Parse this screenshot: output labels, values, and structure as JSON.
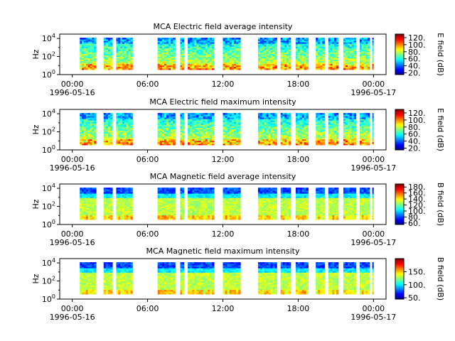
{
  "chart_data": [
    {
      "type": "heatmap",
      "title": "MCA  Electric field average intensity",
      "ylabel": "Hz",
      "y_scale": "log",
      "ylim": [
        1,
        30000
      ],
      "y_ticks": [
        "10^0",
        "10^2",
        "10^4"
      ],
      "x_ticks": [
        "00:00",
        "06:00",
        "12:00",
        "18:00",
        "00:00"
      ],
      "x_tick_dates": [
        "1996-05-16",
        "",
        "",
        "",
        "1996-05-17"
      ],
      "xlim_hours": [
        -1,
        25
      ],
      "colorbar_label": "E field (dB)",
      "colorbar_ticks": [
        20,
        40,
        60,
        80,
        100,
        120
      ],
      "colorbar_range": [
        15,
        130
      ],
      "colormap": "jet",
      "style": "electric",
      "data_coverage_hours": [
        [
          0.6,
          1.9
        ],
        [
          2.5,
          3.2
        ],
        [
          3.5,
          4.8
        ],
        [
          6.8,
          8.2
        ],
        [
          8.6,
          8.9
        ],
        [
          9.2,
          11.3
        ],
        [
          12.0,
          13.4
        ],
        [
          14.8,
          16.3
        ],
        [
          16.6,
          17.4
        ],
        [
          17.8,
          18.8
        ],
        [
          19.4,
          20.1
        ],
        [
          20.4,
          21.2
        ],
        [
          21.6,
          22.6
        ],
        [
          22.9,
          23.7
        ],
        [
          23.9,
          24.0
        ]
      ]
    },
    {
      "type": "heatmap",
      "title": "MCA  Electric field maximum intensity",
      "ylabel": "Hz",
      "y_scale": "log",
      "ylim": [
        1,
        30000
      ],
      "y_ticks": [
        "10^0",
        "10^2",
        "10^4"
      ],
      "x_ticks": [
        "00:00",
        "06:00",
        "12:00",
        "18:00",
        "00:00"
      ],
      "x_tick_dates": [
        "1996-05-16",
        "",
        "",
        "",
        "1996-05-17"
      ],
      "xlim_hours": [
        -1,
        25
      ],
      "colorbar_label": "E field (dB)",
      "colorbar_ticks": [
        20,
        40,
        60,
        80,
        100,
        120
      ],
      "colorbar_range": [
        15,
        130
      ],
      "colormap": "jet",
      "style": "electric",
      "data_coverage_hours": [
        [
          0.6,
          1.9
        ],
        [
          2.5,
          3.2
        ],
        [
          3.5,
          4.8
        ],
        [
          6.8,
          8.2
        ],
        [
          8.6,
          8.9
        ],
        [
          9.2,
          11.3
        ],
        [
          12.0,
          13.4
        ],
        [
          14.8,
          16.3
        ],
        [
          16.6,
          17.4
        ],
        [
          17.8,
          18.8
        ],
        [
          19.4,
          20.1
        ],
        [
          20.4,
          21.2
        ],
        [
          21.6,
          22.6
        ],
        [
          22.9,
          23.7
        ],
        [
          23.9,
          24.0
        ]
      ]
    },
    {
      "type": "heatmap",
      "title": "MCA  Magnetic field average intensity",
      "ylabel": "Hz",
      "y_scale": "log",
      "ylim": [
        1,
        30000
      ],
      "y_ticks": [
        "10^0",
        "10^2",
        "10^4"
      ],
      "x_ticks": [
        "00:00",
        "06:00",
        "12:00",
        "18:00",
        "00:00"
      ],
      "x_tick_dates": [
        "1996-05-16",
        "",
        "",
        "",
        "1996-05-17"
      ],
      "xlim_hours": [
        -1,
        25
      ],
      "colorbar_label": "B field (dB)",
      "colorbar_ticks": [
        60,
        80,
        100,
        120,
        140,
        160,
        180
      ],
      "colorbar_range": [
        55,
        190
      ],
      "colormap": "jet",
      "style": "magnetic",
      "data_coverage_hours": [
        [
          0.6,
          1.9
        ],
        [
          2.5,
          3.2
        ],
        [
          3.5,
          4.8
        ],
        [
          6.8,
          8.2
        ],
        [
          8.6,
          8.9
        ],
        [
          9.2,
          11.3
        ],
        [
          12.0,
          13.4
        ],
        [
          14.8,
          16.3
        ],
        [
          16.6,
          17.4
        ],
        [
          17.8,
          18.8
        ],
        [
          19.4,
          20.1
        ],
        [
          20.4,
          21.2
        ],
        [
          21.6,
          22.6
        ],
        [
          22.9,
          23.7
        ],
        [
          23.9,
          24.0
        ]
      ]
    },
    {
      "type": "heatmap",
      "title": "MCA  Magnetic field maximum intensity",
      "ylabel": "Hz",
      "y_scale": "log",
      "ylim": [
        1,
        30000
      ],
      "y_ticks": [
        "10^0",
        "10^2",
        "10^4"
      ],
      "x_ticks": [
        "00:00",
        "06:00",
        "12:00",
        "18:00",
        "00:00"
      ],
      "x_tick_dates": [
        "1996-05-16",
        "",
        "",
        "",
        "1996-05-17"
      ],
      "xlim_hours": [
        -1,
        25
      ],
      "colorbar_label": "B field (dB)",
      "colorbar_ticks": [
        50,
        100,
        150
      ],
      "colorbar_range": [
        45,
        200
      ],
      "colormap": "jet",
      "style": "magnetic",
      "data_coverage_hours": [
        [
          0.6,
          1.9
        ],
        [
          2.5,
          3.2
        ],
        [
          3.5,
          4.8
        ],
        [
          6.8,
          8.2
        ],
        [
          8.6,
          8.9
        ],
        [
          9.2,
          11.3
        ],
        [
          12.0,
          13.4
        ],
        [
          14.8,
          16.3
        ],
        [
          16.6,
          17.4
        ],
        [
          17.8,
          18.8
        ],
        [
          19.4,
          20.1
        ],
        [
          20.4,
          21.2
        ],
        [
          21.6,
          22.6
        ],
        [
          22.9,
          23.7
        ],
        [
          23.9,
          24.0
        ]
      ]
    }
  ]
}
